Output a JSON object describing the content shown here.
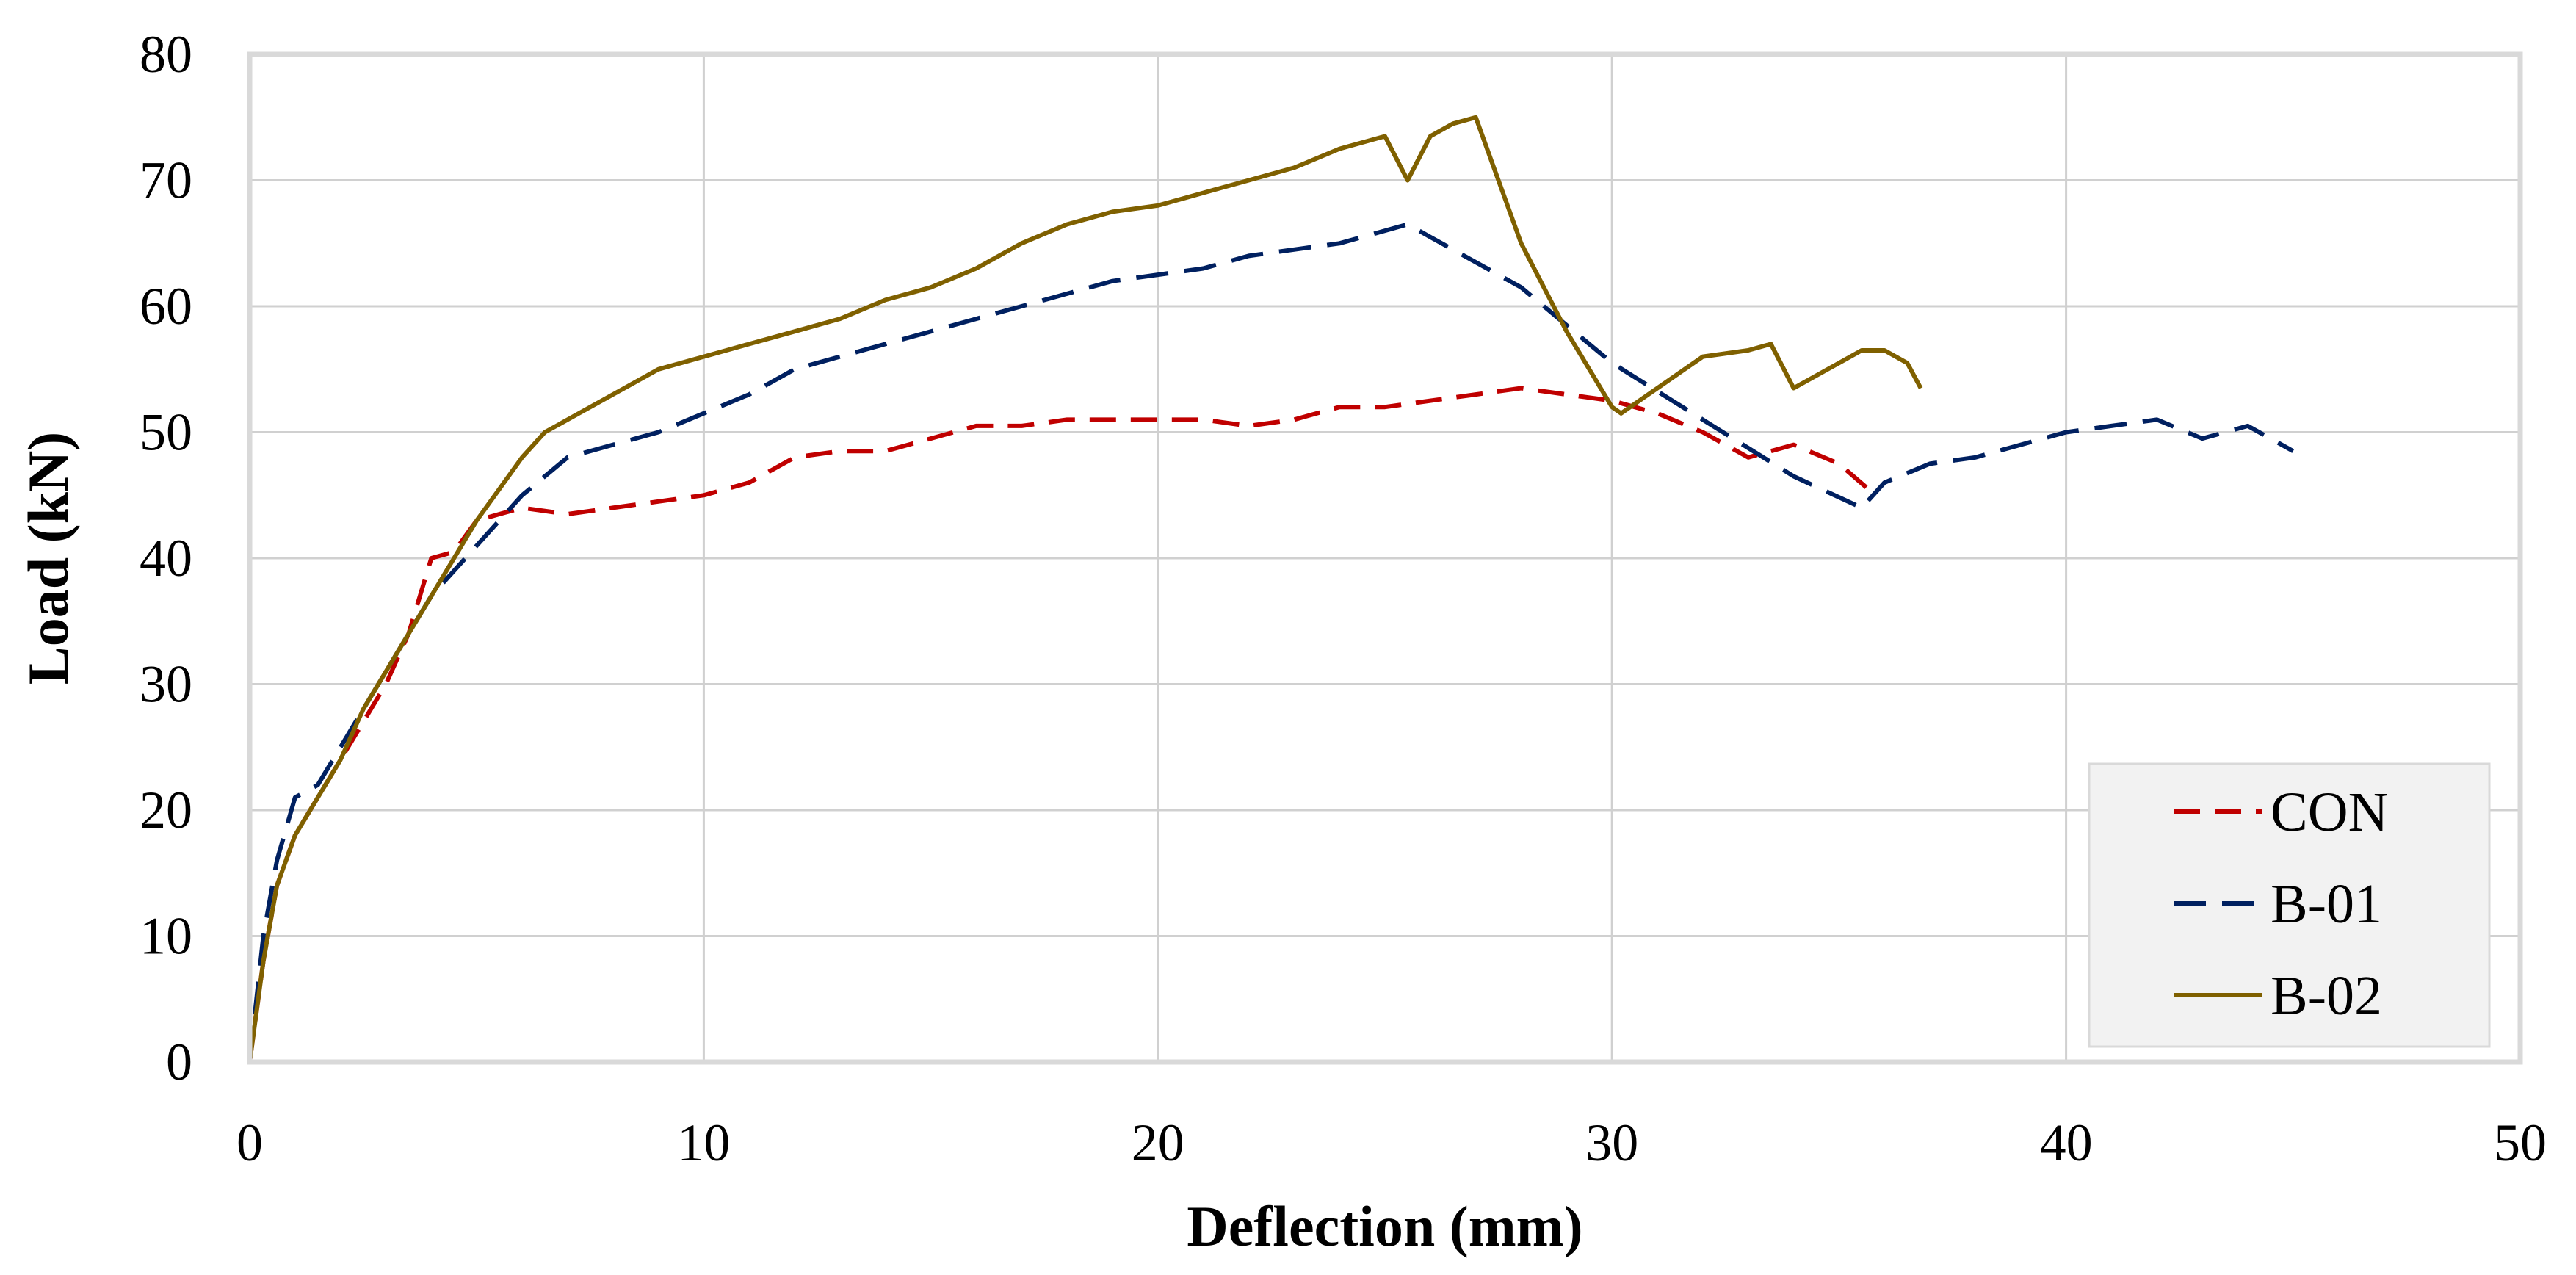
{
  "chart_data": {
    "type": "line",
    "title": "",
    "xlabel": "Deflection (mm)",
    "ylabel": "Load (kN)",
    "xlim": [
      0,
      50
    ],
    "ylim": [
      0,
      80
    ],
    "xticks": [
      0,
      10,
      20,
      30,
      40,
      50
    ],
    "yticks": [
      0,
      10,
      20,
      30,
      40,
      50,
      60,
      70,
      80
    ],
    "grid": true,
    "legend_position": "bottom-right",
    "series": [
      {
        "name": "CON",
        "color": "#C00000",
        "dash": "dashed",
        "x": [
          0,
          0.3,
          0.6,
          1.0,
          1.5,
          2.0,
          2.5,
          3.0,
          3.5,
          4.0,
          4.5,
          5.0,
          5.5,
          6.0,
          7.0,
          8.0,
          9.0,
          10.0,
          11.0,
          12.0,
          13.0,
          14.0,
          15.0,
          16.0,
          17.0,
          18.0,
          19.0,
          20.0,
          21.0,
          22.0,
          23.0,
          24.0,
          25.0,
          26.0,
          27.0,
          28.0,
          29.0,
          30.0,
          31.0,
          32.0,
          33.0,
          34.0,
          35.0,
          35.8
        ],
        "y": [
          0,
          8,
          14,
          18,
          21,
          24,
          27,
          30,
          34,
          40,
          40.5,
          43,
          43.5,
          44,
          43.5,
          44,
          44.5,
          45,
          46,
          48,
          48.5,
          48.5,
          49.5,
          50.5,
          50.5,
          51,
          51,
          51,
          51,
          50.5,
          51,
          52,
          52,
          52.5,
          53,
          53.5,
          53,
          52.5,
          51.5,
          50,
          48,
          49,
          47.5,
          45
        ]
      },
      {
        "name": "B-01",
        "color": "#002060",
        "dash": "long-dash",
        "x": [
          0,
          0.3,
          0.6,
          1.0,
          1.5,
          2.0,
          2.5,
          3.0,
          3.5,
          4.0,
          4.5,
          5.0,
          5.5,
          6.0,
          7.0,
          8.0,
          9.0,
          10.0,
          11.0,
          12.0,
          13.0,
          14.0,
          15.0,
          16.0,
          17.0,
          18.0,
          19.0,
          20.0,
          21.0,
          22.0,
          23.0,
          24.0,
          25.0,
          25.5,
          26.0,
          28.0,
          30.0,
          32.0,
          34.0,
          35.5,
          36.0,
          37.0,
          38.0,
          39.0,
          40.0,
          41.0,
          42.0,
          43.0,
          44.0,
          45.0
        ],
        "y": [
          0,
          10,
          16,
          21,
          22,
          25,
          28,
          31,
          34,
          37,
          39,
          41,
          43,
          45,
          48,
          49,
          50,
          51.5,
          53,
          55,
          56,
          57,
          58,
          59,
          60,
          61,
          62,
          62.5,
          63,
          64,
          64.5,
          65,
          66,
          66.5,
          65.5,
          61.5,
          55.5,
          51,
          46.5,
          44,
          46,
          47.5,
          48,
          49,
          50,
          50.5,
          51,
          49.5,
          50.5,
          48.5
        ]
      },
      {
        "name": "B-02",
        "color": "#7F6000",
        "dash": "solid",
        "x": [
          0,
          0.3,
          0.6,
          1.0,
          1.5,
          2.0,
          2.5,
          3.0,
          3.5,
          4.0,
          4.5,
          5.0,
          5.5,
          6.0,
          6.5,
          7.0,
          8.0,
          9.0,
          10.0,
          11.0,
          12.0,
          13.0,
          14.0,
          15.0,
          16.0,
          17.0,
          18.0,
          19.0,
          20.0,
          21.0,
          22.0,
          23.0,
          24.0,
          25.0,
          25.5,
          26.0,
          26.5,
          27.0,
          27.3,
          28.0,
          29.0,
          30.0,
          30.2,
          31.0,
          32.0,
          33.0,
          33.5,
          34.0,
          35.0,
          35.5,
          36.0,
          36.5,
          36.8
        ],
        "y": [
          0,
          8,
          14,
          18,
          21,
          24,
          28,
          31,
          34,
          37,
          40,
          43,
          45.5,
          48,
          50,
          51,
          53,
          55,
          56,
          57,
          58,
          59,
          60.5,
          61.5,
          63,
          65,
          66.5,
          67.5,
          68,
          69,
          70,
          71,
          72.5,
          73.5,
          70,
          73.5,
          74.5,
          75,
          72,
          65,
          58,
          52,
          51.5,
          53.5,
          56,
          56.5,
          57,
          53.5,
          55.5,
          56.5,
          56.5,
          55.5,
          53.5
        ]
      }
    ]
  }
}
